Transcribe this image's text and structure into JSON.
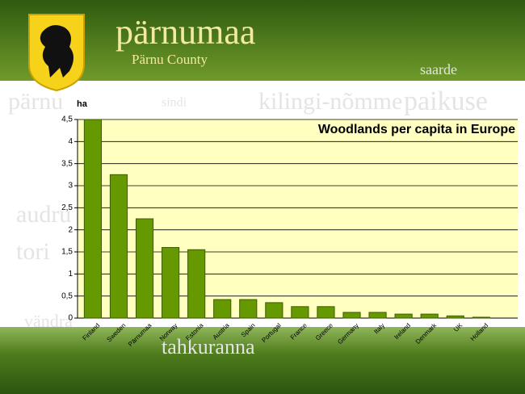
{
  "header": {
    "title": "pärnumaa",
    "subtitle": "Pärnu County"
  },
  "background_words": [
    "saarde",
    "pärnu",
    "sindi",
    "kilingi-nõmme",
    "paikuse",
    "audru",
    "tori",
    "vändra",
    "tahkuranna"
  ],
  "chart_data": {
    "type": "bar",
    "title": "Woodlands per capita in Europe",
    "y_label": "ha",
    "categories": [
      "Finland",
      "Sweden",
      "Pärnumaa",
      "Norway",
      "Estonia",
      "Austria",
      "Spain",
      "Portugal",
      "France",
      "Greece",
      "Germany",
      "Italy",
      "Ireland",
      "Denmark",
      "UK",
      "Holland"
    ],
    "values": [
      4.5,
      3.25,
      2.25,
      1.6,
      1.55,
      0.42,
      0.42,
      0.35,
      0.26,
      0.26,
      0.13,
      0.13,
      0.09,
      0.09,
      0.05,
      0.02
    ],
    "color": "#669900",
    "ylim": [
      0,
      4.5
    ],
    "yticks": [
      0,
      {
        "value": 0.5,
        "label": "0,5"
      },
      1,
      {
        "value": 1.5,
        "label": "1,5"
      },
      2,
      {
        "value": 2.5,
        "label": "2,5"
      },
      3,
      {
        "value": 3.5,
        "label": "3,5"
      },
      4,
      {
        "value": 4.5,
        "label": "4,5"
      }
    ],
    "grid": true
  }
}
